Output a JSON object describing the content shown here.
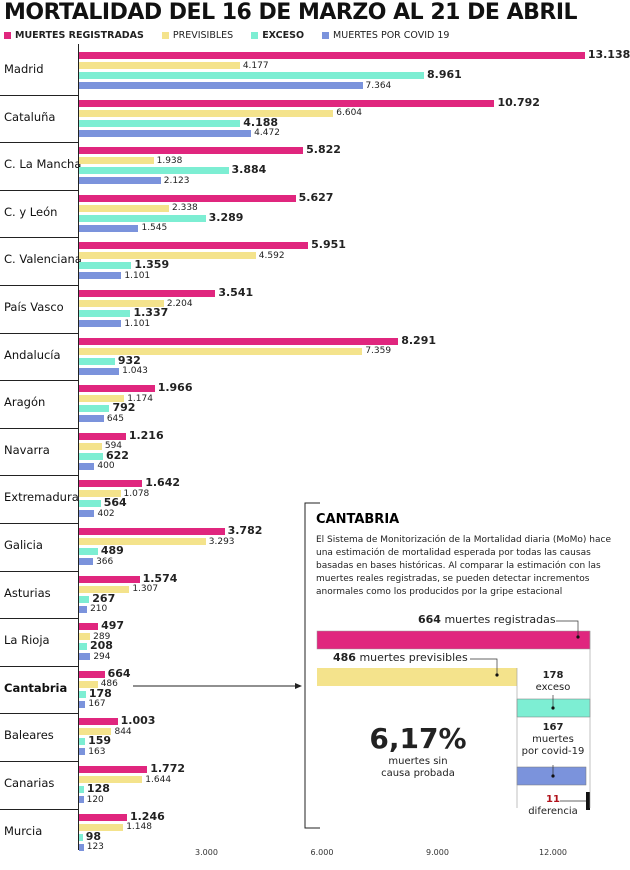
{
  "chart_data": {
    "type": "bar",
    "orientation": "horizontal",
    "title": "MORTALIDAD DEL 16 DE MARZO AL 21 DE ABRIL",
    "xlim": [
      0,
      13500
    ],
    "xticks": [
      3000,
      6000,
      9000,
      12000
    ],
    "xtick_labels": [
      "3.000",
      "6.000",
      "9.000",
      "12.000"
    ],
    "categories": [
      "Madrid",
      "Cataluña",
      "C. La Mancha",
      "C. y León",
      "C. Valenciana",
      "País Vasco",
      "Andalucía",
      "Aragón",
      "Navarra",
      "Extremadura",
      "Galicia",
      "Asturias",
      "La Rioja",
      "Cantabria",
      "Baleares",
      "Canarias",
      "Murcia"
    ],
    "series": [
      {
        "name": "MUERTES REGISTRADAS",
        "color": "#e0267e",
        "values": [
          13138,
          10792,
          5822,
          5627,
          5951,
          3541,
          8291,
          1966,
          1216,
          1642,
          3782,
          1574,
          497,
          664,
          1003,
          1772,
          1246
        ],
        "labels": [
          "13.138",
          "10.792",
          "5.822",
          "5.627",
          "5.951",
          "3.541",
          "8.291",
          "1.966",
          "1.216",
          "1.642",
          "3.782",
          "1.574",
          "497",
          "664",
          "1.003",
          "1.772",
          "1.246"
        ]
      },
      {
        "name": "PREVISIBLES",
        "color": "#f4e38c",
        "values": [
          4177,
          6604,
          1938,
          2338,
          4592,
          2204,
          7359,
          1174,
          594,
          1078,
          3293,
          1307,
          289,
          486,
          844,
          1644,
          1148
        ],
        "labels": [
          "4.177",
          "6.604",
          "1.938",
          "2.338",
          "4.592",
          "2.204",
          "7.359",
          "1.174",
          "594",
          "1.078",
          "3.293",
          "1.307",
          "289",
          "486",
          "844",
          "1.644",
          "1.148"
        ]
      },
      {
        "name": "EXCESO",
        "color": "#7deed3",
        "values": [
          8961,
          4188,
          3884,
          3289,
          1359,
          1337,
          932,
          792,
          622,
          564,
          489,
          267,
          208,
          178,
          159,
          128,
          98
        ],
        "labels": [
          "8.961",
          "4.188",
          "3.884",
          "3.289",
          "1.359",
          "1.337",
          "932",
          "792",
          "622",
          "564",
          "489",
          "267",
          "208",
          "178",
          "159",
          "128",
          "98"
        ]
      },
      {
        "name": "MUERTES POR COVID 19",
        "color": "#7b93dc",
        "values": [
          7364,
          4472,
          2123,
          1545,
          1101,
          1101,
          1043,
          645,
          400,
          402,
          366,
          210,
          294,
          167,
          163,
          120,
          123
        ],
        "labels": [
          "7.364",
          "4.472",
          "2.123",
          "1.545",
          "1.101",
          "1.101",
          "1.043",
          "645",
          "400",
          "402",
          "366",
          "210",
          "294",
          "167",
          "163",
          "120",
          "123"
        ]
      }
    ],
    "highlight": "Cantabria"
  },
  "panel": {
    "title": "CANTABRIA",
    "text": "El Sistema de Monitorización de la Mortalidad diaria (MoMo) hace una estimación de mortalidad esperada por todas las causas basadas en bases históricas. Al comparar la estimación con las muertes reales registradas, se pueden detectar incrementos anormales como los producidos por la gripe estacional",
    "reg_num": "664",
    "reg_txt": " muertes registradas",
    "prev_num": "486",
    "prev_txt": " muertes previsibles",
    "exc_num": "178",
    "exc_txt": "exceso",
    "cov_num": "167",
    "cov_txt1": "muertes",
    "cov_txt2": "por covid-19",
    "dif_num": "11",
    "dif_txt": "diferencia",
    "pct": "6,17%",
    "pct_txt1": "muertes sin",
    "pct_txt2": "causa probada"
  }
}
